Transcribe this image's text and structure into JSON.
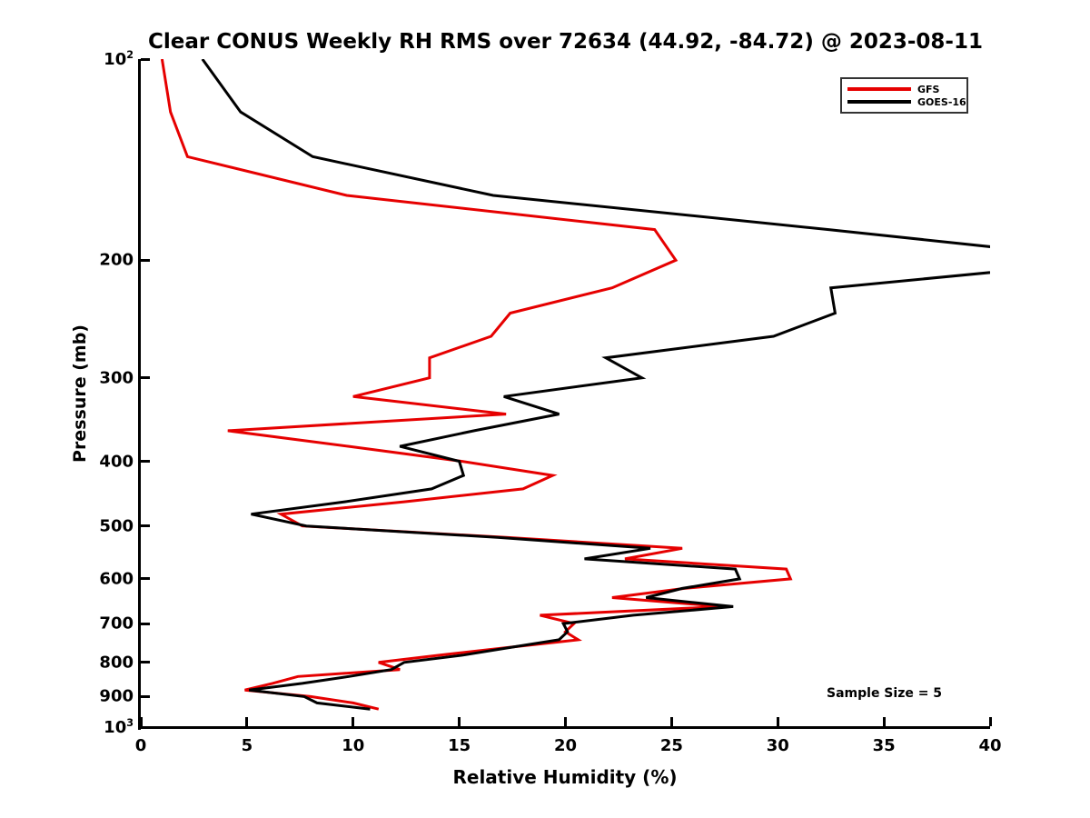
{
  "title": "Clear CONUS Weekly RH RMS over 72634 (44.92, -84.72) @ 2023-08-11",
  "annotation": "Sample Size = 5",
  "axes": {
    "xlabel": "Relative Humidity (%)",
    "ylabel": "Pressure (mb)"
  },
  "legend": {
    "items": [
      {
        "label": "GFS",
        "color": "#e60000"
      },
      {
        "label": "GOES-16",
        "color": "#000000"
      }
    ]
  },
  "chart_data": {
    "type": "line",
    "title": "Clear CONUS Weekly RH RMS over 72634 (44.92, -84.72) @ 2023-08-11",
    "xlabel": "Relative Humidity (%)",
    "ylabel": "Pressure (mb)",
    "xlim": [
      0,
      40
    ],
    "ylim": [
      100,
      1000
    ],
    "yscale": "log",
    "y_inverted": true,
    "grid": false,
    "legend_position": "upper right",
    "annotation": "Sample Size = 5",
    "xticks": [
      0,
      5,
      10,
      15,
      20,
      25,
      30,
      35,
      40
    ],
    "ytick_values": [
      100,
      200,
      300,
      400,
      500,
      600,
      700,
      800,
      900,
      1000
    ],
    "ytick_labels": [
      "10^2",
      "200",
      "300",
      "400",
      "500",
      "600",
      "700",
      "800",
      "900",
      "10^3"
    ],
    "pressure_levels_mb": [
      100,
      120,
      140,
      160,
      180,
      200,
      220,
      240,
      260,
      280,
      300,
      320,
      340,
      360,
      380,
      400,
      420,
      440,
      460,
      480,
      500,
      520,
      540,
      560,
      580,
      600,
      620,
      640,
      660,
      680,
      700,
      720,
      740,
      760,
      780,
      800,
      820,
      840,
      860,
      880,
      900,
      920,
      940
    ],
    "series": [
      {
        "name": "GFS",
        "color": "#e60000",
        "values": [
          1.0,
          1.4,
          2.2,
          9.7,
          24.2,
          25.2,
          22.2,
          17.4,
          16.5,
          13.6,
          13.6,
          10.0,
          17.2,
          4.1,
          9.8,
          15.1,
          19.4,
          18.0,
          12.4,
          6.6,
          7.6,
          17.2,
          25.5,
          22.8,
          30.4,
          30.6,
          25.6,
          22.2,
          27.4,
          18.8,
          20.4,
          20.0,
          20.6,
          17.3,
          14.1,
          11.2,
          12.2,
          7.4,
          6.2,
          4.9,
          8.0,
          10.0,
          11.2
        ]
      },
      {
        "name": "GOES-16",
        "color": "#000000",
        "values": [
          2.9,
          4.7,
          8.1,
          16.6,
          32.4,
          46.0,
          32.5,
          32.7,
          29.8,
          21.9,
          23.6,
          17.1,
          19.7,
          15.7,
          12.2,
          15.0,
          15.2,
          13.7,
          9.6,
          5.2,
          7.8,
          16.8,
          24.0,
          20.9,
          28.0,
          28.2,
          25.5,
          23.8,
          27.9,
          23.2,
          19.9,
          20.1,
          19.7,
          17.4,
          15.2,
          12.4,
          11.8,
          9.8,
          7.6,
          5.1,
          7.7,
          8.3,
          10.8
        ]
      }
    ]
  }
}
